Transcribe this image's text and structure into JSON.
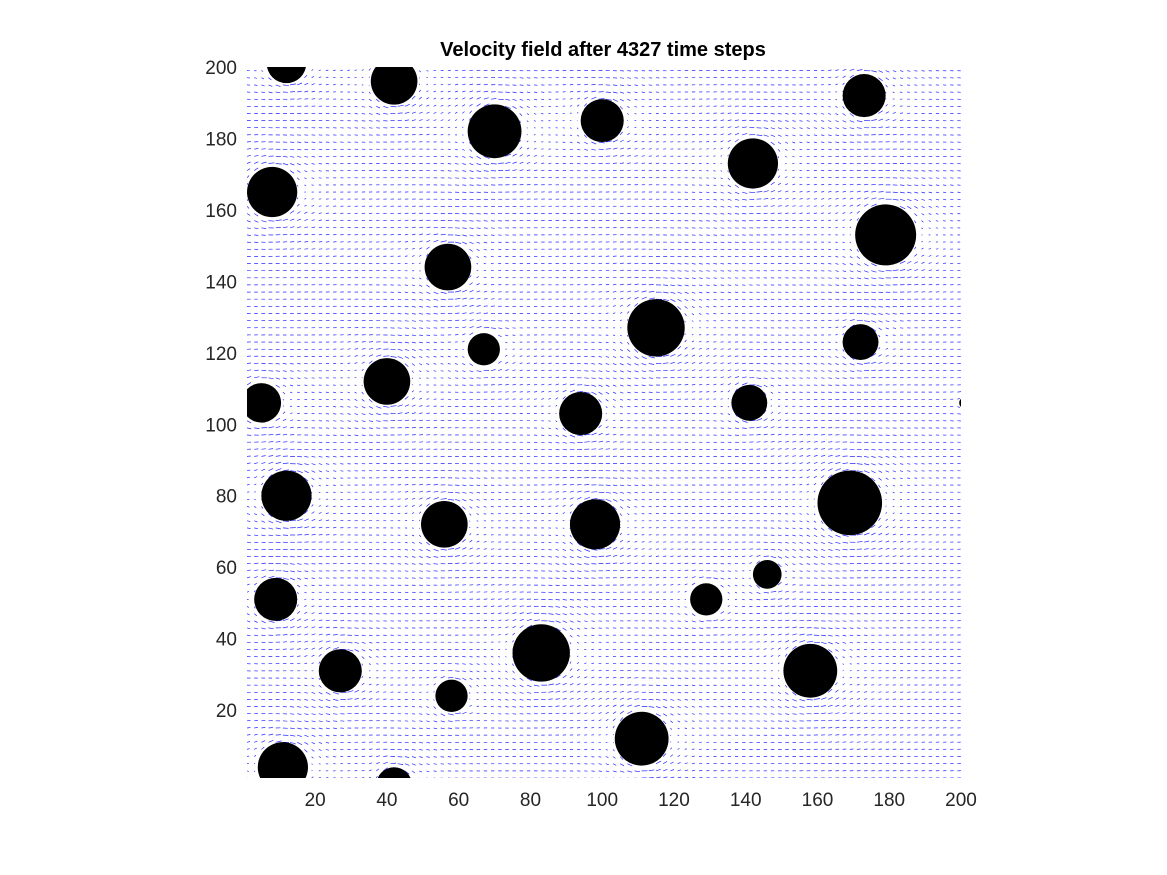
{
  "chart_data": {
    "type": "quiver",
    "title": "Velocity field after 4327 time steps",
    "xlabel": "",
    "ylabel": "",
    "xlim": [
      1,
      200
    ],
    "ylim": [
      1,
      200
    ],
    "x_ticks": [
      20,
      40,
      60,
      80,
      100,
      120,
      140,
      160,
      180,
      200
    ],
    "y_ticks": [
      20,
      40,
      60,
      80,
      100,
      120,
      140,
      160,
      180,
      200
    ],
    "x_tick_labels": [
      "20",
      "40",
      "60",
      "80",
      "100",
      "120",
      "140",
      "160",
      "180",
      "200"
    ],
    "y_tick_labels": [
      "20",
      "40",
      "60",
      "80",
      "100",
      "120",
      "140",
      "160",
      "180",
      "200"
    ],
    "grid": false,
    "arrow_color": "#0000ff",
    "obstacle_color": "#000000",
    "flow_direction": "left-to-right",
    "obstacles": [
      {
        "x": 12,
        "y": 201,
        "r": 5.5
      },
      {
        "x": 42,
        "y": 196,
        "r": 6.5
      },
      {
        "x": 70,
        "y": 182,
        "r": 7.5
      },
      {
        "x": 100,
        "y": 185,
        "r": 6
      },
      {
        "x": 173,
        "y": 192,
        "r": 6
      },
      {
        "x": 142,
        "y": 173,
        "r": 7
      },
      {
        "x": 8,
        "y": 165,
        "r": 7
      },
      {
        "x": 179,
        "y": 153,
        "r": 8.5
      },
      {
        "x": 57,
        "y": 144,
        "r": 6.5
      },
      {
        "x": 115,
        "y": 127,
        "r": 8
      },
      {
        "x": 67,
        "y": 121,
        "r": 4.5
      },
      {
        "x": 172,
        "y": 123,
        "r": 5
      },
      {
        "x": 40,
        "y": 112,
        "r": 6.5
      },
      {
        "x": 5,
        "y": 106,
        "r": 5.5
      },
      {
        "x": 141,
        "y": 106,
        "r": 5
      },
      {
        "x": 94,
        "y": 103,
        "r": 6
      },
      {
        "x": 201,
        "y": 106,
        "r": 1.5
      },
      {
        "x": 12,
        "y": 80,
        "r": 7
      },
      {
        "x": 169,
        "y": 78,
        "r": 9
      },
      {
        "x": 56,
        "y": 72,
        "r": 6.5
      },
      {
        "x": 98,
        "y": 72,
        "r": 7
      },
      {
        "x": 146,
        "y": 58,
        "r": 4
      },
      {
        "x": 129,
        "y": 51,
        "r": 4.5
      },
      {
        "x": 9,
        "y": 51,
        "r": 6
      },
      {
        "x": 83,
        "y": 36,
        "r": 8
      },
      {
        "x": 158,
        "y": 31,
        "r": 7.5
      },
      {
        "x": 27,
        "y": 31,
        "r": 6
      },
      {
        "x": 58,
        "y": 24,
        "r": 4.5
      },
      {
        "x": 111,
        "y": 12,
        "r": 7.5
      },
      {
        "x": 11,
        "y": 4,
        "r": 7
      },
      {
        "x": 42,
        "y": -1,
        "r": 5
      }
    ]
  }
}
